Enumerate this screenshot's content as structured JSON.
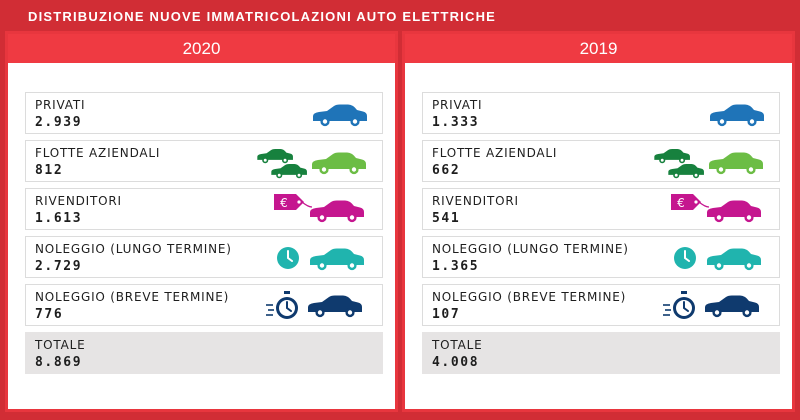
{
  "title": "DISTRIBUZIONE NUOVE IMMATRICOLAZIONI AUTO ELETTRICHE",
  "colors": {
    "background": "#d12d35",
    "header": "#ef3a42",
    "privati": "#1f74b8",
    "flotte_dark": "#17813e",
    "flotte_light": "#6cbd45",
    "rivenditori": "#c5168f",
    "noleggio_lungo": "#20b4ae",
    "noleggio_breve": "#0f3a6e",
    "total_bg": "#e6e4e4"
  },
  "icons": {
    "privati": "car-icon",
    "flotte_aziendali": "fleet-cars-icon",
    "rivenditori": "euro-tag-car-icon",
    "noleggio_lungo": "clock-car-icon",
    "noleggio_breve": "stopwatch-car-icon"
  },
  "panels": [
    {
      "year": "2020",
      "rows": [
        {
          "label": "PRIVATI",
          "value": "2.939"
        },
        {
          "label": "FLOTTE AZIENDALI",
          "value": "812"
        },
        {
          "label": "RIVENDITORI",
          "value": "1.613"
        },
        {
          "label": "NOLEGGIO (LUNGO TERMINE)",
          "value": "2.729"
        },
        {
          "label": "NOLEGGIO (BREVE TERMINE)",
          "value": "776"
        }
      ],
      "total": {
        "label": "TOTALE",
        "value": "8.869"
      }
    },
    {
      "year": "2019",
      "rows": [
        {
          "label": "PRIVATI",
          "value": "1.333"
        },
        {
          "label": "FLOTTE AZIENDALI",
          "value": "662"
        },
        {
          "label": "RIVENDITORI",
          "value": "541"
        },
        {
          "label": "NOLEGGIO (LUNGO TERMINE)",
          "value": "1.365"
        },
        {
          "label": "NOLEGGIO (BREVE TERMINE)",
          "value": "107"
        }
      ],
      "total": {
        "label": "TOTALE",
        "value": "4.008"
      }
    }
  ],
  "chart_data": {
    "type": "table",
    "title": "DISTRIBUZIONE NUOVE IMMATRICOLAZIONI AUTO ELETTRICHE",
    "columns": [
      "2020",
      "2019"
    ],
    "categories": [
      "PRIVATI",
      "FLOTTE AZIENDALI",
      "RIVENDITORI",
      "NOLEGGIO (LUNGO TERMINE)",
      "NOLEGGIO (BREVE TERMINE)",
      "TOTALE"
    ],
    "series": [
      {
        "name": "2020",
        "values": [
          2939,
          812,
          1613,
          2729,
          776,
          8869
        ]
      },
      {
        "name": "2019",
        "values": [
          1333,
          662,
          541,
          1365,
          107,
          4008
        ]
      }
    ]
  }
}
